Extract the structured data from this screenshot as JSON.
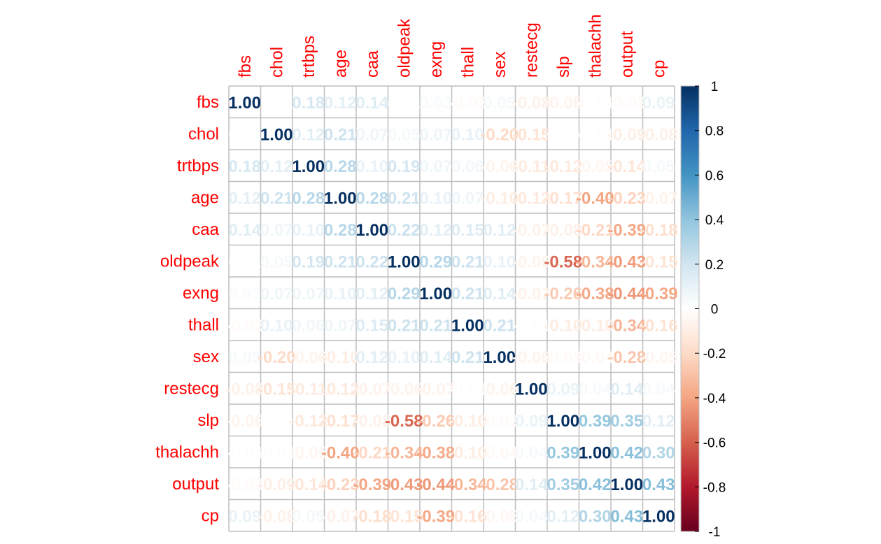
{
  "chart_data": {
    "type": "heatmap",
    "title": "",
    "variables": [
      "fbs",
      "chol",
      "trtbps",
      "age",
      "caa",
      "oldpeak",
      "exng",
      "thall",
      "sex",
      "restecg",
      "slp",
      "thalachh",
      "output",
      "cp"
    ],
    "matrix": [
      [
        1.0,
        0.01,
        0.18,
        0.12,
        0.14,
        0.01,
        0.03,
        -0.03,
        0.05,
        -0.08,
        -0.06,
        -0.01,
        -0.03,
        0.09
      ],
      [
        0.01,
        1.0,
        0.12,
        0.21,
        0.07,
        0.05,
        0.07,
        0.1,
        -0.2,
        -0.15,
        0.0,
        -0.01,
        -0.09,
        -0.08
      ],
      [
        0.18,
        0.12,
        1.0,
        0.28,
        0.1,
        0.19,
        0.07,
        0.06,
        -0.06,
        -0.11,
        -0.12,
        -0.05,
        -0.14,
        0.05
      ],
      [
        0.12,
        0.21,
        0.28,
        1.0,
        0.28,
        0.21,
        0.1,
        0.07,
        -0.1,
        -0.12,
        -0.17,
        -0.4,
        -0.23,
        -0.07
      ],
      [
        0.14,
        0.07,
        0.1,
        0.28,
        1.0,
        0.22,
        0.12,
        0.15,
        0.12,
        -0.07,
        -0.08,
        -0.21,
        -0.39,
        -0.18
      ],
      [
        0.01,
        0.05,
        0.19,
        0.21,
        0.22,
        1.0,
        0.29,
        0.21,
        0.1,
        -0.06,
        -0.58,
        -0.34,
        -0.43,
        -0.15
      ],
      [
        0.03,
        0.07,
        0.07,
        0.1,
        0.12,
        0.29,
        1.0,
        0.21,
        0.14,
        -0.07,
        -0.26,
        -0.38,
        -0.44,
        -0.39
      ],
      [
        -0.03,
        0.1,
        0.06,
        0.07,
        0.15,
        0.21,
        0.21,
        1.0,
        0.21,
        -0.01,
        -0.1,
        -0.1,
        -0.34,
        -0.16
      ],
      [
        0.05,
        -0.2,
        -0.06,
        -0.1,
        0.12,
        0.1,
        0.14,
        0.21,
        1.0,
        -0.06,
        -0.03,
        -0.04,
        -0.28,
        -0.05
      ],
      [
        -0.08,
        -0.15,
        -0.11,
        -0.12,
        -0.07,
        -0.06,
        -0.07,
        -0.01,
        -0.06,
        1.0,
        0.09,
        0.04,
        0.14,
        0.04
      ],
      [
        -0.06,
        0.0,
        -0.12,
        -0.17,
        -0.08,
        -0.58,
        -0.26,
        -0.1,
        -0.03,
        0.09,
        1.0,
        0.39,
        0.35,
        0.12
      ],
      [
        -0.01,
        -0.01,
        -0.05,
        -0.4,
        -0.21,
        -0.34,
        -0.38,
        -0.1,
        -0.04,
        0.04,
        0.39,
        1.0,
        0.42,
        0.3
      ],
      [
        -0.03,
        -0.09,
        -0.14,
        -0.23,
        -0.39,
        -0.43,
        -0.44,
        -0.34,
        -0.28,
        0.14,
        0.35,
        0.42,
        1.0,
        0.43
      ],
      [
        0.09,
        -0.08,
        0.05,
        -0.07,
        -0.18,
        -0.15,
        -0.39,
        -0.16,
        -0.05,
        0.04,
        0.12,
        0.3,
        0.43,
        1.0
      ]
    ],
    "colorbar": {
      "min": -1,
      "max": 1,
      "ticks": [
        "1",
        "0.8",
        "0.6",
        "0.4",
        "0.2",
        "0",
        "-0.2",
        "-0.4",
        "-0.6",
        "-0.8",
        "-1"
      ],
      "tick_values": [
        1,
        0.8,
        0.6,
        0.4,
        0.2,
        0,
        -0.2,
        -0.4,
        -0.6,
        -0.8,
        -1
      ],
      "colors": [
        "#67001F",
        "#B2182B",
        "#D6604D",
        "#F4A582",
        "#FDDBC7",
        "#FFFFFF",
        "#D1E5F0",
        "#92C5DE",
        "#4393C3",
        "#2166AC",
        "#053061"
      ]
    },
    "label_color": "#ff0000",
    "grid": true
  }
}
